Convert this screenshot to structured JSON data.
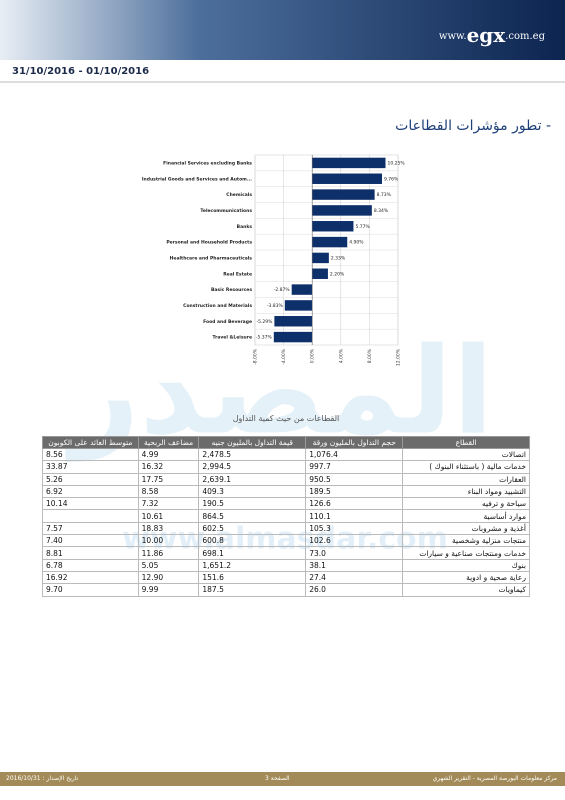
{
  "header": {
    "logo": [
      "www.",
      "egx",
      ".com.eg"
    ]
  },
  "date_range": "31/10/2016 - 01/10/2016",
  "section_title": "- تطور مؤشرات القطاعات",
  "watermark": {
    "word": "المصدر",
    "url": "www.almasdar.com"
  },
  "chart_data": {
    "type": "barh",
    "categories": [
      "Financial Services excluding Banks",
      "Industrial Goods and Services and Autom...",
      "Chemicals",
      "Telecommunications",
      "Banks",
      "Personal and Household Products",
      "Healthcare and Pharmaceuticals",
      "Real Estate",
      "Basic Resources",
      "Construction and Materials",
      "Food and Beverage",
      "Travel &Leisure"
    ],
    "values": [
      10.25,
      9.76,
      8.73,
      8.34,
      5.77,
      4.9,
      2.33,
      2.2,
      -2.87,
      -3.83,
      -5.29,
      -5.37
    ],
    "value_labels": [
      "10.25%",
      "9.76%",
      "8.73%",
      "8.34%",
      "5.77%",
      "4.90%",
      "2.33%",
      "2.20%",
      "-2.87%",
      "-3.83%",
      "-5.29%",
      "-5.37%"
    ],
    "color": "#0d2f6a",
    "xlim": [
      -8,
      12
    ],
    "xticks": [
      {
        "value": -8,
        "label": "-8.00%"
      },
      {
        "value": -4,
        "label": "-4.00%"
      },
      {
        "value": 0,
        "label": "0.00%"
      },
      {
        "value": 4,
        "label": "4.00%"
      },
      {
        "value": 8,
        "label": "8.00%"
      },
      {
        "value": 12,
        "label": "12.00%"
      }
    ],
    "grid": true
  },
  "table": {
    "caption": "القطاعات من حيث كمية التداول",
    "headers": [
      "القطاع",
      "حجم التداول بالمليون ورقة",
      "قيمة التداول بالمليون جنيه",
      "مضاعف الربحية",
      "متوسط العائد على الكوبون"
    ],
    "rows": [
      [
        "اتصالات",
        "1,076.4",
        "2,478.5",
        "4.99",
        "8.56"
      ],
      [
        "خدمات مالية ( باستثناء البنوك )",
        "997.7",
        "2,994.5",
        "16.32",
        "33.87"
      ],
      [
        "العقارات",
        "950.5",
        "2,639.1",
        "17.75",
        "5.26"
      ],
      [
        "التشييد ومواد البناء",
        "189.5",
        "409.3",
        "8.58",
        "6.92"
      ],
      [
        "سياحة و ترفيه",
        "126.6",
        "190.5",
        "7.32",
        "10.14"
      ],
      [
        "موارد أساسية",
        "110.1",
        "864.5",
        "10.61",
        null
      ],
      [
        "أغذية و مشروبات",
        "105.3",
        "602.5",
        "18.83",
        "7.57"
      ],
      [
        "منتجات منزلية وشخصية",
        "102.6",
        "600.8",
        "10.00",
        "7.40"
      ],
      [
        "خدمات ومنتجات صناعية و سيارات",
        "73.0",
        "698.1",
        "11.86",
        "8.81"
      ],
      [
        "بنوك",
        "38.1",
        "1,651.2",
        "5.05",
        "6.78"
      ],
      [
        "رعاية صحية و ادوية",
        "27.4",
        "151.6",
        "12.90",
        "16.92"
      ],
      [
        "كيماويات",
        "26.0",
        "187.5",
        "9.99",
        "9.70"
      ]
    ]
  },
  "footer": {
    "right": "مركز معلومات البورصة المصرية - التقرير الشهري",
    "center": "الصفحة 3",
    "left": "تاريخ الإصدار : 2016/10/31"
  }
}
